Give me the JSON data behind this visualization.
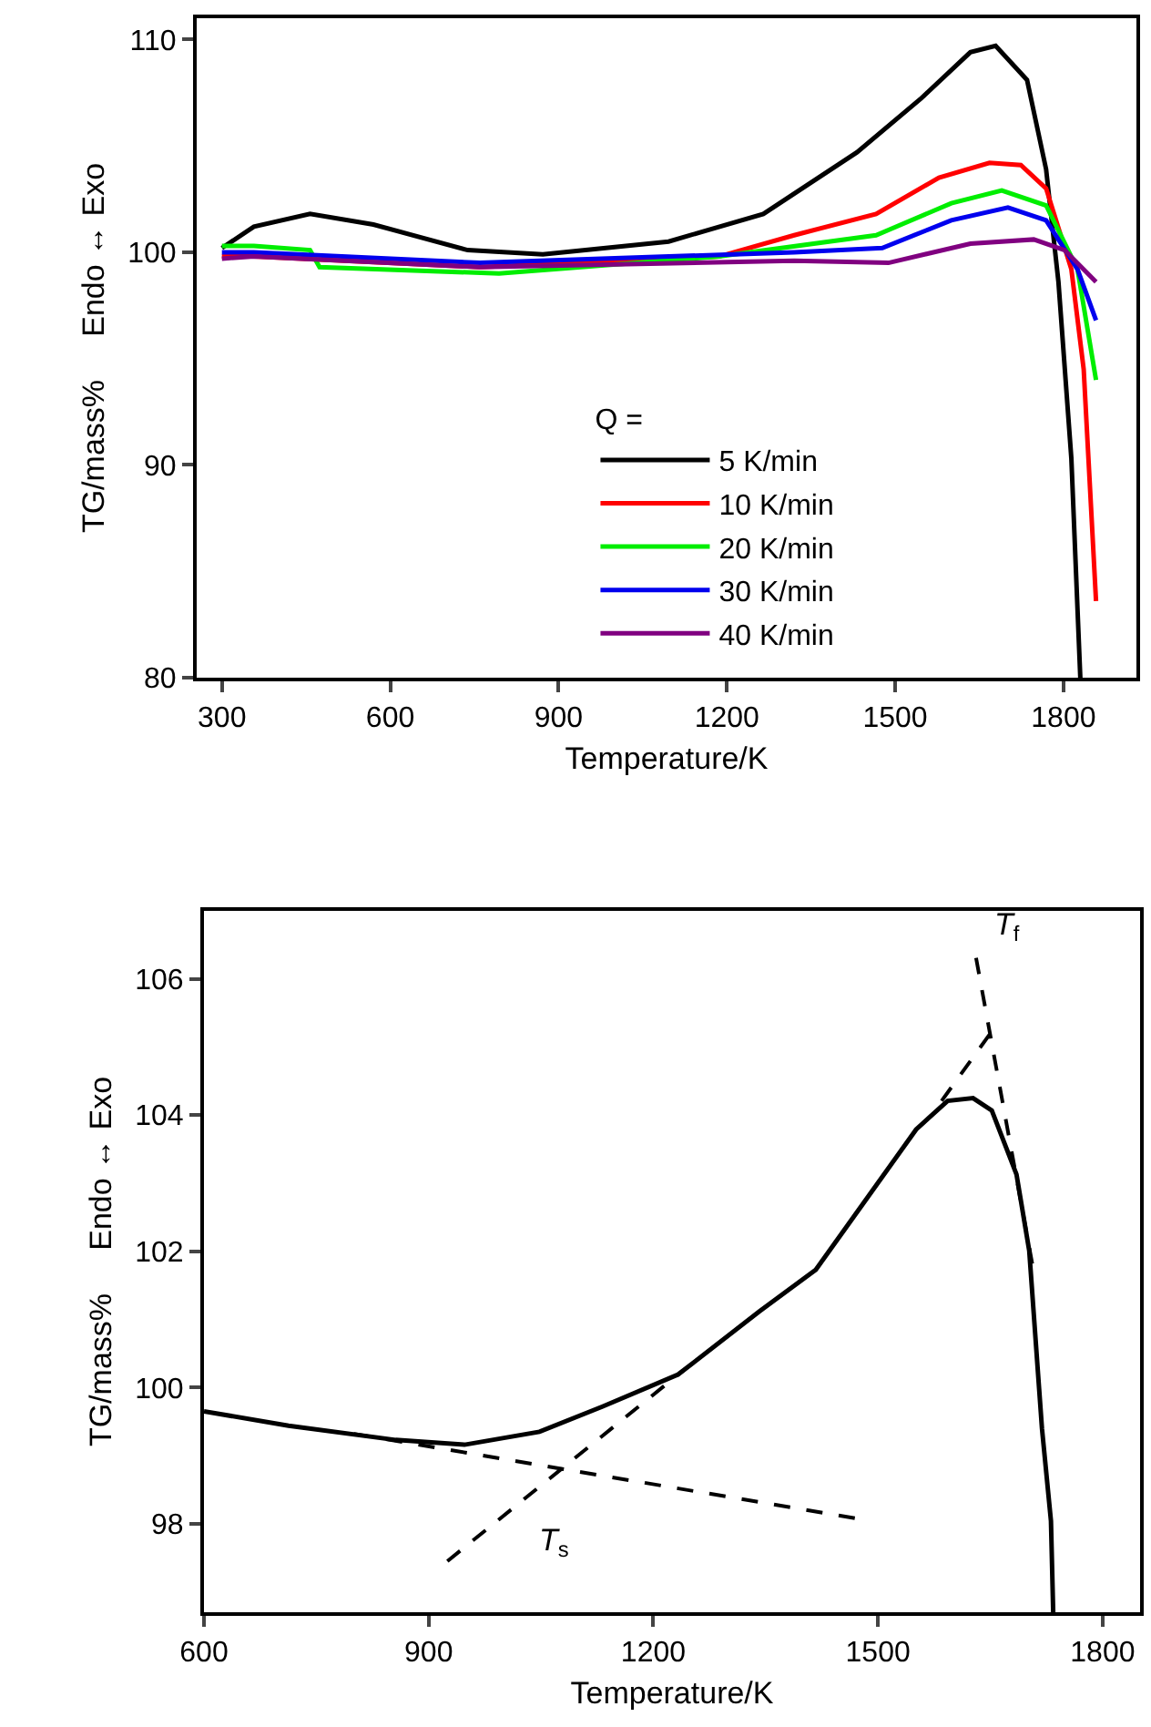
{
  "chart_data": [
    {
      "type": "line",
      "xlabel": "Temperature/K",
      "ylabel": "TG/mass%     Endo ↔ Exo",
      "legend_title": "Q =",
      "legend": "bottom right",
      "xlim": [
        255,
        1930
      ],
      "ylim": [
        80,
        111
      ],
      "xticks": [
        300,
        600,
        900,
        1200,
        1500,
        1800
      ],
      "yticks": [
        80,
        90,
        100,
        110
      ],
      "series": [
        {
          "name": "5 K/min",
          "color": "#000000",
          "x": [
            300,
            357,
            457,
            570,
            738,
            872,
            1096,
            1265,
            1432,
            1545,
            1634,
            1679,
            1735,
            1769,
            1791,
            1814,
            1830
          ],
          "values": [
            100.2,
            101.2,
            101.8,
            101.3,
            100.1,
            99.9,
            100.5,
            101.8,
            104.7,
            107.2,
            109.4,
            109.7,
            108.1,
            103.9,
            98.6,
            90.3,
            80.0
          ]
        },
        {
          "name": "10 K/min",
          "color": "#ff0000",
          "x": [
            300,
            357,
            760,
            1186,
            1320,
            1466,
            1578,
            1668,
            1724,
            1769,
            1814,
            1836,
            1858
          ],
          "values": [
            99.8,
            99.8,
            99.3,
            99.8,
            100.8,
            101.8,
            103.5,
            104.2,
            104.1,
            103.0,
            99.2,
            94.5,
            83.6
          ]
        },
        {
          "name": "20 K/min",
          "color": "#00ee00",
          "x": [
            300,
            357,
            457,
            474,
            794,
            1186,
            1466,
            1600,
            1690,
            1769,
            1825,
            1858
          ],
          "values": [
            100.3,
            100.3,
            100.1,
            99.3,
            99.0,
            99.8,
            100.8,
            102.3,
            102.9,
            102.2,
            99.2,
            94.0
          ]
        },
        {
          "name": "30 K/min",
          "color": "#0000ee",
          "x": [
            300,
            357,
            760,
            1320,
            1477,
            1600,
            1701,
            1769,
            1825,
            1858
          ],
          "values": [
            100.0,
            100.0,
            99.5,
            100.0,
            100.2,
            101.5,
            102.1,
            101.5,
            99.2,
            96.8
          ]
        },
        {
          "name": "40 K/min",
          "color": "#800080",
          "x": [
            300,
            357,
            760,
            1320,
            1488,
            1634,
            1747,
            1802,
            1858
          ],
          "values": [
            99.7,
            99.8,
            99.3,
            99.6,
            99.5,
            100.4,
            100.6,
            100.1,
            98.6
          ]
        }
      ]
    },
    {
      "type": "line",
      "xlabel": "Temperature/K",
      "ylabel": "TG/mass%     Endo ↔ Exo",
      "xlim": [
        600,
        1850
      ],
      "ylim": [
        96.7,
        107
      ],
      "xticks": [
        600,
        900,
        1200,
        1500,
        1800
      ],
      "yticks": [
        98,
        100,
        102,
        104,
        106
      ],
      "series": [
        {
          "color": "#000000",
          "line_style": "solid",
          "x": [
            600,
            713,
            856,
            948,
            1048,
            1132,
            1233,
            1342,
            1417,
            1484,
            1551,
            1593,
            1627,
            1652,
            1685,
            1702,
            1719,
            1731,
            1734
          ],
          "values": [
            99.65,
            99.44,
            99.23,
            99.16,
            99.35,
            99.72,
            100.19,
            101.12,
            101.73,
            102.76,
            103.79,
            104.21,
            104.25,
            104.07,
            103.13,
            102.01,
            99.4,
            98.04,
            96.7
          ]
        },
        {
          "color": "#000000",
          "line_style": "dashed",
          "x": [
            800,
            1470
          ],
          "values": [
            99.32,
            98.08
          ]
        },
        {
          "name": "T$_{s}$",
          "color": "#000000",
          "line_style": "dashed",
          "x": [
            925,
            1240
          ],
          "values": [
            97.45,
            100.25
          ]
        },
        {
          "color": "#000000",
          "line_style": "dashed",
          "x": [
            1585,
            1652
          ],
          "values": [
            104.21,
            105.23
          ]
        },
        {
          "name": "T$_{f}$",
          "color": "#000000",
          "line_style": "dashed",
          "x": [
            1631,
            1706
          ],
          "values": [
            106.31,
            101.82
          ]
        }
      ]
    }
  ]
}
